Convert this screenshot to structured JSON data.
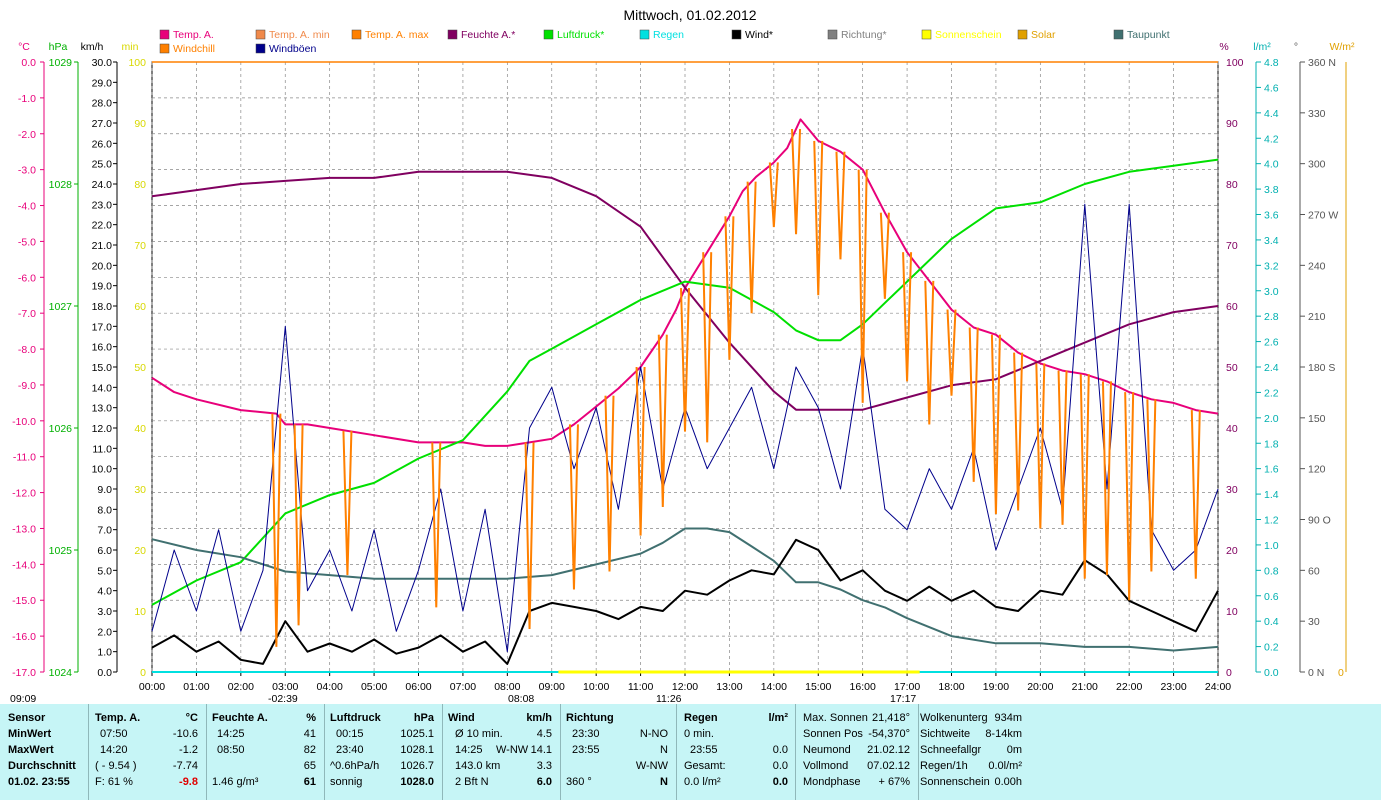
{
  "title": "Mittwoch, 01.02.2012",
  "legend": [
    {
      "label": "Temp. A.",
      "color": "#e8007a"
    },
    {
      "label": "Temp. A. min",
      "color": "#f08a4b"
    },
    {
      "label": "Temp. A. max",
      "color": "#ff8000"
    },
    {
      "label": "Feuchte A.*",
      "color": "#800060"
    },
    {
      "label": "Luftdruck*",
      "color": "#00e000"
    },
    {
      "label": "Regen",
      "color": "#00e0e0"
    },
    {
      "label": "Wind*",
      "color": "#000000"
    },
    {
      "label": "Richtung*",
      "color": "#808080"
    },
    {
      "label": "Sonnenschein",
      "color": "#ffff00"
    },
    {
      "label": "Solar",
      "color": "#e0a000"
    },
    {
      "label": "Taupunkt",
      "color": "#407070"
    },
    {
      "label": "Windchill",
      "color": "#ff8000"
    },
    {
      "label": "Windböen",
      "color": "#00008b"
    }
  ],
  "axes": {
    "temp_unit": "°C",
    "hpa_unit": "hPa",
    "kmh_unit": "km/h",
    "min_unit": "min",
    "pct_unit": "%",
    "rain_unit": "l/m²",
    "deg_unit": "°",
    "solar_unit": "W/m²",
    "temp_ticks": [
      "0.0",
      "-1.0",
      "-2.0",
      "-3.0",
      "-4.0",
      "-5.0",
      "-6.0",
      "-7.0",
      "-8.0",
      "-9.0",
      "-10.0",
      "-11.0",
      "-12.0",
      "-13.0",
      "-14.0",
      "-15.0",
      "-16.0",
      "-17.0"
    ],
    "hpa_ticks": [
      "1029",
      "1028",
      "1027",
      "1026",
      "1025",
      "1024"
    ],
    "kmh_ticks": [
      "30.0",
      "29.0",
      "28.0",
      "27.0",
      "26.0",
      "25.0",
      "24.0",
      "23.0",
      "22.0",
      "21.0",
      "20.0",
      "19.0",
      "18.0",
      "17.0",
      "16.0",
      "15.0",
      "14.0",
      "13.0",
      "12.0",
      "11.0",
      "10.0",
      "9.0",
      "8.0",
      "7.0",
      "6.0",
      "5.0",
      "4.0",
      "3.0",
      "2.0",
      "1.0",
      "0.0"
    ],
    "min_ticks": [
      "100",
      "90",
      "80",
      "70",
      "60",
      "50",
      "40",
      "30",
      "20",
      "10",
      "0"
    ],
    "pct_ticks": [
      "100",
      "90",
      "80",
      "70",
      "60",
      "50",
      "40",
      "30",
      "20",
      "10",
      "0"
    ],
    "rain_ticks": [
      "4.8",
      "4.6",
      "4.4",
      "4.2",
      "4.0",
      "3.8",
      "3.6",
      "3.4",
      "3.2",
      "3.0",
      "2.8",
      "2.6",
      "2.4",
      "2.2",
      "2.0",
      "1.8",
      "1.6",
      "1.4",
      "1.2",
      "1.0",
      "0.8",
      "0.6",
      "0.4",
      "0.2",
      "0.0"
    ],
    "deg_ticks": [
      "360 N",
      "330",
      "300",
      "270 W",
      "240",
      "210",
      "180 S",
      "150",
      "120",
      "90  O",
      "60",
      "30",
      "0   N"
    ],
    "solar_bottom": "0",
    "time_ticks": [
      "00:00",
      "01:00",
      "02:00",
      "03:00",
      "04:00",
      "05:00",
      "06:00",
      "07:00",
      "08:00",
      "09:00",
      "10:00",
      "11:00",
      "12:00",
      "13:00",
      "14:00",
      "15:00",
      "16:00",
      "17:00",
      "18:00",
      "19:00",
      "20:00",
      "21:00",
      "22:00",
      "23:00",
      "24:00"
    ],
    "sun_marks": [
      "09:09",
      "-02:39",
      "08:08",
      "11:26",
      "17:17"
    ]
  },
  "chart_data": {
    "type": "line",
    "x_unit": "hour",
    "series": [
      {
        "name": "Temp. A.",
        "color": "#e8007a",
        "axis": "temp",
        "x": [
          0,
          0.5,
          1,
          2,
          2.8,
          3,
          3.5,
          4,
          5,
          6,
          6.5,
          7,
          7.5,
          8,
          8.5,
          9,
          9.5,
          10,
          10.5,
          11,
          11.5,
          11.8,
          12,
          12.5,
          13,
          13.3,
          13.6,
          14,
          14.3,
          14.6,
          15,
          15.5,
          16,
          16.5,
          17,
          17.5,
          18,
          18.5,
          19,
          19.5,
          20,
          20.5,
          21,
          21.5,
          22,
          22.5,
          23,
          23.5,
          24
        ],
        "y": [
          -8.8,
          -9.2,
          -9.4,
          -9.7,
          -9.8,
          -10.1,
          -10.1,
          -10.2,
          -10.4,
          -10.6,
          -10.6,
          -10.6,
          -10.7,
          -10.7,
          -10.6,
          -10.5,
          -10.1,
          -9.6,
          -9.1,
          -8.5,
          -7.6,
          -6.9,
          -6.3,
          -5.3,
          -4.3,
          -3.6,
          -3.2,
          -2.8,
          -2.4,
          -1.6,
          -2.2,
          -2.5,
          -3.0,
          -4.2,
          -5.3,
          -6.1,
          -6.9,
          -7.4,
          -7.6,
          -8.1,
          -8.4,
          -8.6,
          -8.7,
          -8.9,
          -9.2,
          -9.4,
          -9.5,
          -9.7,
          -9.8
        ]
      },
      {
        "name": "Feuchte A.*",
        "color": "#800060",
        "axis": "pct",
        "x": [
          0,
          1,
          2,
          3,
          4,
          5,
          6,
          7,
          8,
          9,
          10,
          11,
          11.5,
          12,
          13,
          14,
          14.5,
          15,
          16,
          17,
          18,
          19,
          20,
          21,
          22,
          23,
          24
        ],
        "y": [
          78,
          79,
          80,
          80.5,
          81,
          81,
          82,
          82,
          82,
          81,
          78,
          73,
          68,
          63,
          54,
          46,
          43,
          43,
          43,
          45,
          47,
          48,
          51,
          54,
          57,
          59,
          60
        ]
      },
      {
        "name": "Luftdruck*",
        "color": "#00e000",
        "axis": "hpa",
        "x": [
          0,
          1,
          2,
          3,
          4,
          5,
          6,
          7,
          7.5,
          8,
          8.5,
          9,
          10,
          11,
          12,
          13,
          14,
          14.5,
          15,
          15.5,
          16,
          17,
          18,
          19,
          20,
          21,
          22,
          23,
          24
        ],
        "y": [
          1024.55,
          1024.75,
          1024.9,
          1025.3,
          1025.45,
          1025.55,
          1025.75,
          1025.9,
          1026.1,
          1026.3,
          1026.55,
          1026.65,
          1026.85,
          1027.05,
          1027.2,
          1027.15,
          1026.95,
          1026.8,
          1026.72,
          1026.72,
          1026.85,
          1027.2,
          1027.55,
          1027.8,
          1027.85,
          1028.0,
          1028.1,
          1028.15,
          1028.2
        ]
      },
      {
        "name": "Taupunkt",
        "color": "#407070",
        "axis": "temp",
        "x": [
          0,
          1,
          2,
          3,
          4,
          5,
          6,
          7,
          8,
          9,
          10,
          11,
          11.5,
          12,
          12.5,
          13,
          13.5,
          14,
          14.5,
          15,
          15.5,
          16,
          16.5,
          17,
          18,
          19,
          20,
          21,
          22,
          23,
          24
        ],
        "y": [
          -13.3,
          -13.6,
          -13.8,
          -14.2,
          -14.3,
          -14.4,
          -14.4,
          -14.4,
          -14.4,
          -14.3,
          -14.0,
          -13.7,
          -13.4,
          -13.0,
          -13.0,
          -13.1,
          -13.5,
          -13.9,
          -14.5,
          -14.5,
          -14.7,
          -15.0,
          -15.2,
          -15.5,
          -16.0,
          -16.2,
          -16.2,
          -16.3,
          -16.3,
          -16.4,
          -16.3
        ]
      },
      {
        "name": "Wind*",
        "color": "#000000",
        "axis": "kmh",
        "x": [
          0,
          0.5,
          1,
          1.5,
          2,
          2.5,
          3,
          3.5,
          4,
          4.5,
          5,
          5.5,
          6,
          6.5,
          7,
          7.5,
          8,
          8.5,
          9,
          9.5,
          10,
          10.5,
          11,
          11.5,
          12,
          12.5,
          13,
          13.5,
          14,
          14.5,
          15,
          15.5,
          16,
          16.5,
          17,
          17.5,
          18,
          18.5,
          19,
          19.5,
          20,
          20.5,
          21,
          21.5,
          22,
          22.5,
          23,
          23.5,
          24
        ],
        "y": [
          1.2,
          1.8,
          1.0,
          1.5,
          0.6,
          0.4,
          2.5,
          1.0,
          1.4,
          1.0,
          1.6,
          0.9,
          1.2,
          1.8,
          1.0,
          1.5,
          0.4,
          3.0,
          3.4,
          3.2,
          3.0,
          2.6,
          3.2,
          3.0,
          4.0,
          3.8,
          4.5,
          5.0,
          4.8,
          6.5,
          6.0,
          4.5,
          5.0,
          4.0,
          3.5,
          4.2,
          3.5,
          4.0,
          3.2,
          3.0,
          4.0,
          3.8,
          5.5,
          4.8,
          3.5,
          3.0,
          2.5,
          2.0,
          4.0
        ]
      },
      {
        "name": "Windböen",
        "color": "#00008b",
        "axis": "kmh",
        "x": [
          0,
          0.5,
          1,
          1.5,
          2,
          2.5,
          3,
          3.5,
          4,
          4.5,
          5,
          5.5,
          6,
          6.5,
          7,
          7.5,
          8,
          8.5,
          9,
          9.5,
          10,
          10.5,
          11,
          11.5,
          12,
          12.5,
          13,
          13.5,
          14,
          14.5,
          15,
          15.5,
          16,
          16.5,
          17,
          17.5,
          18,
          18.5,
          19,
          19.5,
          20,
          20.5,
          21,
          21.5,
          22,
          22.5,
          23,
          23.5,
          24
        ],
        "y": [
          2,
          6,
          3,
          7,
          2,
          5,
          17,
          4,
          6,
          3,
          7,
          2,
          5,
          9,
          3,
          8,
          1,
          12,
          14,
          10,
          13,
          8,
          15,
          9,
          13,
          10,
          12,
          14,
          10,
          15,
          13,
          9,
          16,
          8,
          7,
          10,
          8,
          11,
          6,
          9,
          12,
          8,
          23,
          9,
          23,
          7,
          5,
          6,
          9
        ]
      },
      {
        "name": "Richtung*",
        "color": "#808080",
        "axis": "deg",
        "x": [],
        "y": []
      },
      {
        "name": "Temp. A. max",
        "color": "#ff8000",
        "axis": "temp",
        "x": [
          2.8,
          3.3,
          4.4,
          6.4,
          8.5,
          9.5,
          10.3,
          11.0,
          11.5,
          12.0,
          12.5,
          13.0,
          13.5,
          14.0,
          14.5,
          15.0,
          15.5,
          16.0,
          16.5,
          17.0,
          17.5,
          18.0,
          18.5,
          19.0,
          19.5,
          20.0,
          20.5,
          21.0,
          21.5,
          22.0,
          22.5,
          23.5
        ],
        "y": [
          -16.3,
          -15.7,
          -14.3,
          -15.2,
          -15.8,
          -14.7,
          -14.2,
          -13.2,
          -12.4,
          -10.3,
          -10.6,
          -8.3,
          -7.0,
          -4.6,
          -4.8,
          -6.5,
          -5.5,
          -9.5,
          -6.6,
          -8.9,
          -10.1,
          -9.3,
          -11.7,
          -12.6,
          -12.5,
          -13.0,
          -12.9,
          -14.4,
          -14.3,
          -15.0,
          -14.2,
          -14.4
        ]
      }
    ],
    "sun_line": {
      "name": "Sonnenschein",
      "color": "#ffff00",
      "from": "09:09",
      "to": "17:17"
    },
    "ylim_temp": [
      -17,
      0
    ],
    "ylim_hpa": [
      1024,
      1029
    ],
    "ylim_kmh": [
      0,
      30
    ],
    "ylim_pct": [
      0,
      100
    ],
    "ylim_rain": [
      0,
      4.8
    ],
    "ylim_deg": [
      0,
      360
    ],
    "xlim": [
      0,
      24
    ],
    "grid": true
  },
  "table": {
    "headers": {
      "sensor": "Sensor",
      "temp": "Temp. A.",
      "temp_u": "°C",
      "feuchte": "Feuchte A.",
      "feuchte_u": "%",
      "luft": "Luftdruck",
      "luft_u": "hPa",
      "wind": "Wind",
      "wind_u": "km/h",
      "richtung": "Richtung",
      "regen": "Regen",
      "regen_u": "l/m²"
    },
    "row_labels": {
      "min": "MinWert",
      "max": "MaxWert",
      "avg": "Durchschnitt",
      "now": "01.02. 23:55"
    },
    "temp": {
      "min_t": "07:50",
      "min_v": "-10.6",
      "max_t": "14:20",
      "max_v": "-1.2",
      "avg_a": "( - 9.54 )",
      "avg_v": "-7.74",
      "now_a": "F: 61 %",
      "now_v": "-9.8"
    },
    "feuchte": {
      "min_t": "14:25",
      "min_v": "41",
      "max_t": "08:50",
      "max_v": "82",
      "avg_v": "65",
      "now_a": "1.46 g/m³",
      "now_v": "61"
    },
    "luft": {
      "min_t": "00:15",
      "min_v": "1025.1",
      "max_t": "23:40",
      "max_v": "1028.1",
      "avg_a": "^0.6hPa/h",
      "avg_v": "1026.7",
      "now_a": "sonnig",
      "now_v": "1028.0"
    },
    "wind": {
      "r1_a": "Ø 10 min.",
      "r1_v": "4.5",
      "r2_a": "14:25",
      "r2_b": "W-NW",
      "r2_v": "14.1",
      "r3_a": "143.0 km",
      "r3_v": "3.3",
      "r4_a": "2 Bft N",
      "r4_v": "6.0"
    },
    "richtung": {
      "r1_a": "23:30",
      "r1_v": "N-NO",
      "r2_a": "23:55",
      "r2_v": "N",
      "r3_v": "W-NW",
      "r4_a": "360 °",
      "r4_v": "N"
    },
    "regen": {
      "r1_a": "0 min.",
      "r2_a": "23:55",
      "r2_v": "0.0",
      "r3_a": "Gesamt:",
      "r3_v": "0.0",
      "r4_a": "0.0 l/m²",
      "r4_v": "0.0"
    },
    "astro": [
      {
        "k": "Max. Sonnen",
        "v": "21,418°"
      },
      {
        "k": "Sonnen Pos",
        "v": "-54,370°"
      },
      {
        "k": "Neumond",
        "v": "21.02.12"
      },
      {
        "k": "Vollmond",
        "v": "07.02.12"
      },
      {
        "k": "Mondphase",
        "v": "+ 67%"
      }
    ],
    "extra": [
      {
        "k": "Wolkenunterg",
        "v": "934m"
      },
      {
        "k": "Sichtweite",
        "v": "8-14km"
      },
      {
        "k": "Schneefallgr",
        "v": "0m"
      },
      {
        "k": "Regen/1h",
        "v": "0.0l/m²"
      },
      {
        "k": "Sonnenschein",
        "v": "0.00h"
      }
    ]
  }
}
